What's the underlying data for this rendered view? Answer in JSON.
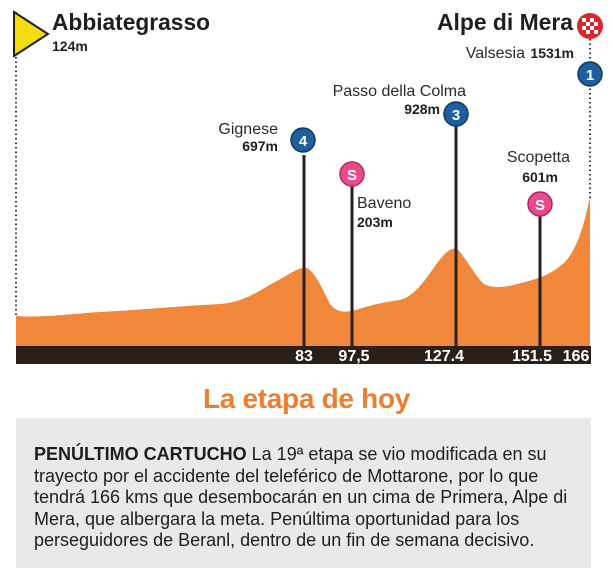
{
  "start": {
    "name": "Abbiategrasso",
    "altitude": "124m"
  },
  "finish": {
    "name": "Alpe di Mera",
    "place": "Valsesia",
    "altitude": "1531m",
    "category": "1"
  },
  "climbs": [
    {
      "name": "Gignese",
      "altitude": "697m",
      "category": "4"
    },
    {
      "name": "Passo della Colma",
      "altitude": "928m",
      "category": "3"
    }
  ],
  "sprints": [
    {
      "name": "Baveno",
      "altitude": "203m",
      "symbol": "S"
    },
    {
      "name": "Scopetta",
      "altitude": "601m",
      "symbol": "S"
    }
  ],
  "km_marks": [
    "83",
    "97,5",
    "127.4",
    "151.5",
    "166"
  ],
  "heading": "La etapa de hoy",
  "description": {
    "lead": "PENÚLTIMO CARTUCHO",
    "body": " La 19ª etapa se vio modificada en su trayecto por el accidente del teleférico de Mottarone, por lo que tendrá 166 kms que desembocarán en un cima de Primera, Alpe di Mera, que albergara la meta. Penúltima oportunidad para los perseguidores de Beranl, dentro de un fin de semana decisivo."
  },
  "colors": {
    "profile": "#f0873a",
    "base": "#2b2018",
    "heading": "#ef7d2c",
    "panel": "#e9e9e9",
    "mountain_badge": "#1f5f9c",
    "sprint_badge": "#e94a8c",
    "start_flag": "#f4dc10"
  }
}
